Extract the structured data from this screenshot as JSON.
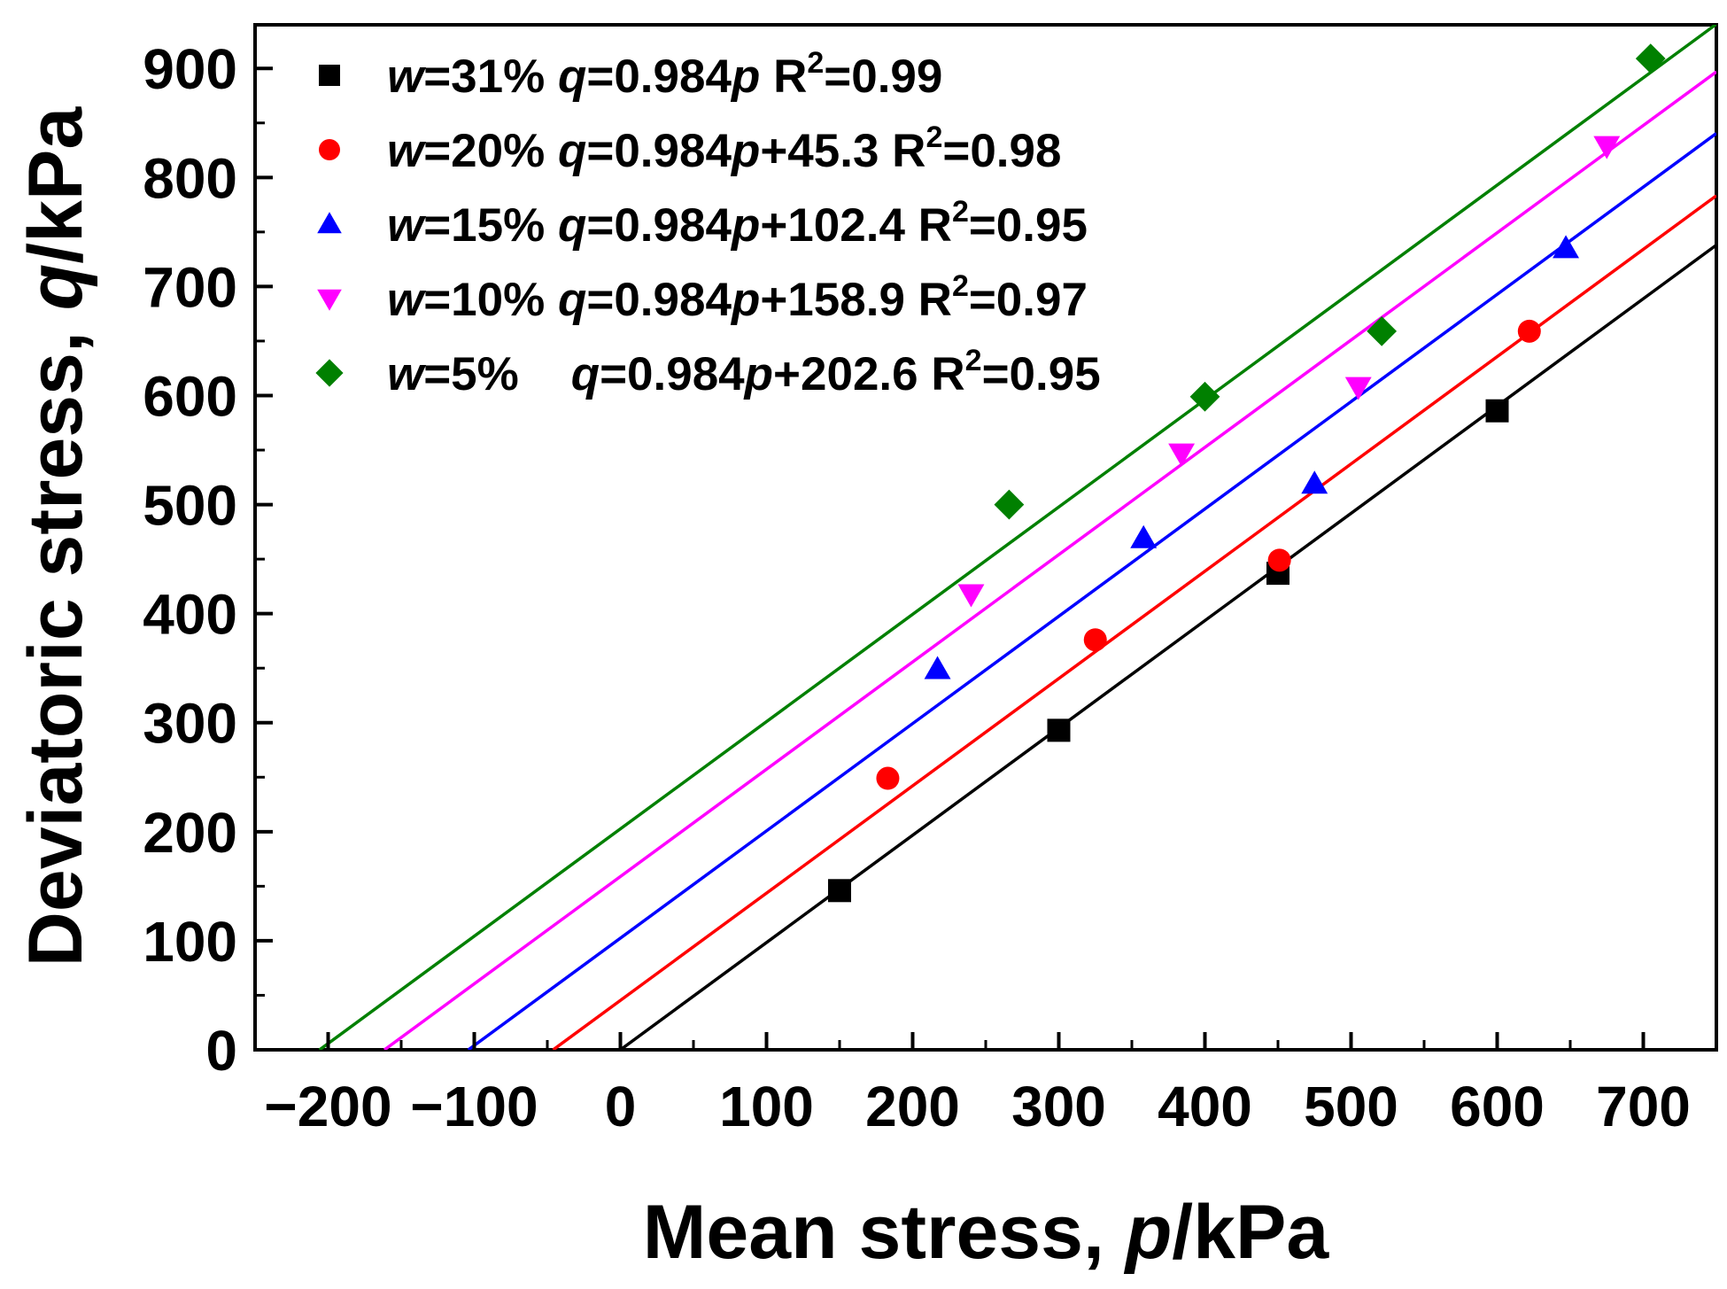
{
  "chart_data": {
    "type": "scatter",
    "xlabel": {
      "prefix": "Mean stress, ",
      "var": "p",
      "unit": "/kPa"
    },
    "ylabel": {
      "prefix": "Deviatoric stress, ",
      "var": "q",
      "unit": "/kPa"
    },
    "xlim": [
      -250,
      750
    ],
    "ylim": [
      0,
      940
    ],
    "xticks": [
      "−200",
      "−100",
      "0",
      "100",
      "200",
      "300",
      "400",
      "500",
      "600",
      "700"
    ],
    "xtick_values": [
      -200,
      -100,
      0,
      100,
      200,
      300,
      400,
      500,
      600,
      700
    ],
    "yticks": [
      "0",
      "100",
      "200",
      "300",
      "400",
      "500",
      "600",
      "700",
      "800",
      "900"
    ],
    "ytick_values": [
      0,
      100,
      200,
      300,
      400,
      500,
      600,
      700,
      800,
      900
    ],
    "legend_position": "top-left",
    "grid": false,
    "series": [
      {
        "name": "w=31%",
        "legend": {
          "w": "w",
          "wv": "=31%",
          "q": "q",
          "eq1": "=0.984",
          "p": "p",
          "eq2": "",
          "r": " R",
          "sup": "2",
          "rv": "=0.99"
        },
        "marker": "square",
        "color": "#000000",
        "slope": 0.984,
        "intercept": 0,
        "points": [
          [
            150,
            146
          ],
          [
            300,
            293
          ],
          [
            450,
            437
          ],
          [
            600,
            586
          ]
        ]
      },
      {
        "name": "w=20%",
        "legend": {
          "w": "w",
          "wv": "=20%",
          "q": "q",
          "eq1": "=0.984",
          "p": "p",
          "eq2": "+45.3",
          "r": " R",
          "sup": "2",
          "rv": "=0.98"
        },
        "marker": "circle",
        "color": "#ff0000",
        "slope": 0.984,
        "intercept": 45.3,
        "points": [
          [
            183,
            249
          ],
          [
            325,
            376
          ],
          [
            451,
            449
          ],
          [
            622,
            659
          ]
        ]
      },
      {
        "name": "w=15%",
        "legend": {
          "w": "w",
          "wv": "=15%",
          "q": "q",
          "eq1": "=0.984",
          "p": "p",
          "eq2": "+102.4",
          "r": " R",
          "sup": "2",
          "rv": "=0.95"
        },
        "marker": "triangle-up",
        "color": "#0000ff",
        "slope": 0.984,
        "intercept": 102.4,
        "points": [
          [
            217,
            349
          ],
          [
            358,
            469
          ],
          [
            475,
            519
          ],
          [
            647,
            735
          ]
        ]
      },
      {
        "name": "w=10%",
        "legend": {
          "w": "w",
          "wv": "=10%",
          "q": "q",
          "eq1": "=0.984",
          "p": "p",
          "eq2": "+158.9",
          "r": " R",
          "sup": "2",
          "rv": "=0.97"
        },
        "marker": "triangle-down",
        "color": "#ff00ff",
        "slope": 0.984,
        "intercept": 158.9,
        "points": [
          [
            240,
            418
          ],
          [
            384,
            547
          ],
          [
            505,
            608
          ],
          [
            675,
            829
          ]
        ]
      },
      {
        "name": "w=5%",
        "legend": {
          "w": "w",
          "wv": "=5%",
          "q": "q",
          "eq1": "=0.984",
          "p": "p",
          "eq2": "+202.6",
          "r": " R",
          "sup": "2",
          "rv": "=0.95"
        },
        "marker": "diamond",
        "color": "#008000",
        "slope": 0.984,
        "intercept": 202.6,
        "points": [
          [
            266,
            500
          ],
          [
            400,
            599
          ],
          [
            521,
            659
          ],
          [
            705,
            909
          ]
        ]
      }
    ]
  }
}
